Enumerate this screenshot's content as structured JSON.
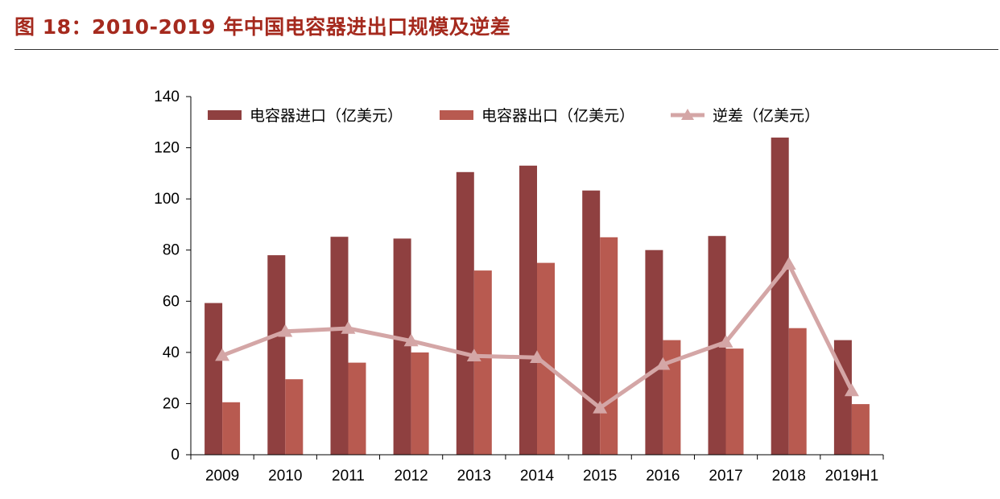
{
  "figure": {
    "title": "图 18：2010-2019 年中国电容器进出口规模及逆差"
  },
  "chart_data": {
    "type": "bar",
    "categories": [
      "2009",
      "2010",
      "2011",
      "2012",
      "2013",
      "2014",
      "2015",
      "2016",
      "2017",
      "2018",
      "2019H1"
    ],
    "series": [
      {
        "name": "电容器进口（亿美元）",
        "kind": "bar",
        "color": "#8f4040",
        "values": [
          59.3,
          78,
          85.2,
          84.5,
          110.5,
          113,
          103.3,
          80,
          85.5,
          124,
          44.8
        ]
      },
      {
        "name": "电容器出口（亿美元）",
        "kind": "bar",
        "color": "#b85a50",
        "values": [
          20.5,
          29.5,
          36,
          40,
          72,
          75,
          85,
          44.8,
          41.5,
          49.5,
          19.8
        ]
      },
      {
        "name": "逆差（亿美元）",
        "kind": "line",
        "marker": "triangle",
        "color": "#d4a6a6",
        "values": [
          38.8,
          48.2,
          49.4,
          44.5,
          38.6,
          38,
          18.3,
          35.3,
          44,
          74.5,
          25
        ]
      }
    ],
    "xlabel": "",
    "ylabel": "",
    "ylim": [
      0,
      140
    ],
    "yticks": [
      0,
      20,
      40,
      60,
      80,
      100,
      120,
      140
    ],
    "grid": false,
    "legend_position": "top"
  }
}
